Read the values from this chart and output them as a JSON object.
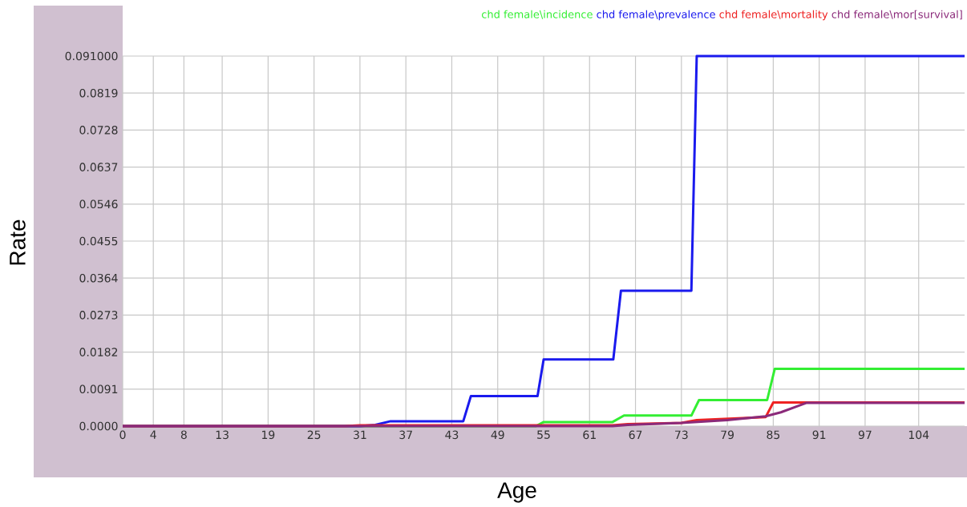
{
  "chart_data": {
    "type": "line",
    "xlabel": "Age",
    "ylabel": "Rate",
    "series": [
      {
        "name": "chd female\\incidence",
        "color": "#33ee33",
        "x": [
          0,
          54,
          55,
          64,
          65.5,
          74.3,
          75.3,
          84.2,
          85.2,
          110
        ],
        "values": [
          0,
          0,
          0.001,
          0.001,
          0.0026,
          0.0026,
          0.0064,
          0.0064,
          0.0141,
          0.0141
        ]
      },
      {
        "name": "chd female\\prevalence",
        "color": "#1a1aee",
        "x": [
          0,
          31,
          33,
          35,
          44.5,
          45.5,
          54.2,
          55,
          64.1,
          65.1,
          74.3,
          75,
          110
        ],
        "values": [
          0,
          0,
          0.0003,
          0.0012,
          0.0012,
          0.0074,
          0.0074,
          0.0164,
          0.0164,
          0.0333,
          0.0333,
          0.091,
          0.091
        ]
      },
      {
        "name": "chd female\\mortality",
        "color": "#ee2222",
        "x": [
          0,
          29,
          31,
          64,
          66,
          73,
          75,
          84,
          85,
          110
        ],
        "values": [
          0,
          0,
          0.0002,
          0.0002,
          0.0005,
          0.0008,
          0.0015,
          0.0022,
          0.0058,
          0.0058
        ]
      },
      {
        "name": "chd female\\mor[survival]",
        "color": "#8b2a7a",
        "x": [
          0,
          64,
          66,
          73,
          79,
          84,
          86,
          89.3,
          110
        ],
        "values": [
          0,
          0,
          0.0003,
          0.0008,
          0.0015,
          0.0024,
          0.0034,
          0.0057,
          0.0057
        ]
      }
    ],
    "xlim": [
      0,
      110
    ],
    "xticks": [
      0,
      4,
      8,
      13,
      19,
      25,
      31,
      37,
      43,
      49,
      55,
      61,
      67,
      73,
      79,
      85,
      91,
      97,
      104
    ],
    "ylim": [
      0,
      0.091
    ],
    "yticks": [
      {
        "value": 0,
        "label": "0.0000"
      },
      {
        "value": 0.0091,
        "label": "0.0091"
      },
      {
        "value": 0.0182,
        "label": "0.0182"
      },
      {
        "value": 0.0273,
        "label": "0.0273"
      },
      {
        "value": 0.0364,
        "label": "0.0364"
      },
      {
        "value": 0.0455,
        "label": "0.0455"
      },
      {
        "value": 0.0546,
        "label": "0.0546"
      },
      {
        "value": 0.0637,
        "label": "0.0637"
      },
      {
        "value": 0.0728,
        "label": "0.0728"
      },
      {
        "value": 0.0819,
        "label": "0.0819"
      },
      {
        "value": 0.091,
        "label": "0.091000"
      }
    ],
    "grid": true,
    "legend": "top"
  }
}
